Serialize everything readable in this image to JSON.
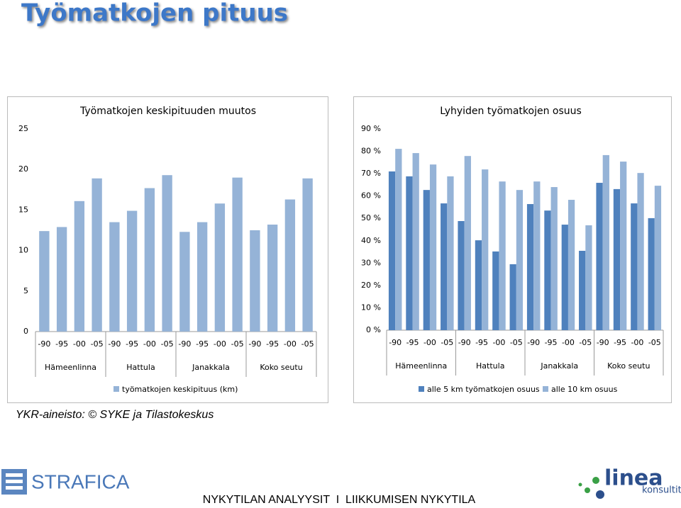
{
  "page_title": "Työmatkojen pituus",
  "source": "YKR-aineisto: © SYKE ja Tilastokeskus",
  "footer": {
    "left_logo": "STRAFICA",
    "center": "NYKYTILAN ANALYYSIT  I  LIIKKUMISEN NYKYTILA",
    "right_logo": "linea",
    "right_logo_sub": "konsultit"
  },
  "chart_data": [
    {
      "type": "bar",
      "title": "Työmatkojen keskipituuden muutos",
      "categories": [
        "-90",
        "-95",
        "-00",
        "-05",
        "-90",
        "-95",
        "-00",
        "-05",
        "-90",
        "-95",
        "-00",
        "-05",
        "-90",
        "-95",
        "-00",
        "-05"
      ],
      "groups": [
        "Hämeenlinna",
        "Hattula",
        "Janakkala",
        "Koko seutu"
      ],
      "series": [
        {
          "name": "työmatkojen keskipituus (km)",
          "color": "#95b3d7",
          "values": [
            12.4,
            12.9,
            16.1,
            18.9,
            13.5,
            14.9,
            17.7,
            19.3,
            12.3,
            13.5,
            15.8,
            19.0,
            12.5,
            13.2,
            16.3,
            18.9
          ]
        }
      ],
      "ylim": [
        0,
        25
      ],
      "yticks": [
        0,
        5,
        10,
        15,
        20,
        25
      ],
      "grid": false,
      "legend": "bottom"
    },
    {
      "type": "bar",
      "title": "Lyhyiden työmatkojen osuus",
      "categories": [
        "-90",
        "-95",
        "-00",
        "-05",
        "-90",
        "-95",
        "-00",
        "-05",
        "-90",
        "-95",
        "-00",
        "-05",
        "-90",
        "-95",
        "-00",
        "-05"
      ],
      "groups": [
        "Hämeenlinna",
        "Hattula",
        "Janakkala",
        "Koko seutu"
      ],
      "series": [
        {
          "name": "alle 5 km työmatkojen osuus",
          "color": "#4f81bd",
          "values": [
            71.0,
            68.8,
            62.7,
            56.7,
            48.8,
            40.2,
            35.2,
            29.5,
            56.4,
            53.5,
            47.2,
            35.5,
            65.9,
            63.1,
            56.7,
            50.1
          ]
        },
        {
          "name": "alle 10 km osuus",
          "color": "#95b3d7",
          "values": [
            81.1,
            79.2,
            74.1,
            68.8,
            77.9,
            71.9,
            66.5,
            62.7,
            66.5,
            64.0,
            58.3,
            46.9,
            78.3,
            75.4,
            70.3,
            64.6
          ]
        }
      ],
      "ylim": [
        0,
        90
      ],
      "yticks": [
        {
          "value": 0,
          "label": "0 %"
        },
        {
          "value": 10,
          "label": "10 %"
        },
        {
          "value": 20,
          "label": "20 %"
        },
        {
          "value": 30,
          "label": "30 %"
        },
        {
          "value": 40,
          "label": "40 %"
        },
        {
          "value": 50,
          "label": "50 %"
        },
        {
          "value": 60,
          "label": "60 %"
        },
        {
          "value": 70,
          "label": "70 %"
        },
        {
          "value": 80,
          "label": "80 %"
        },
        {
          "value": 90,
          "label": "90 %"
        }
      ],
      "grid": false,
      "legend": "bottom"
    }
  ]
}
